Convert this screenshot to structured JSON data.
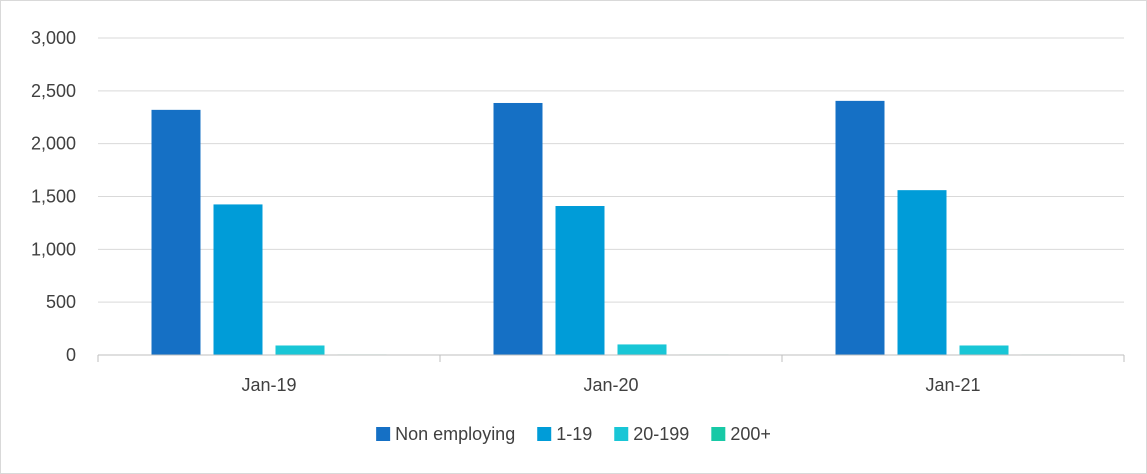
{
  "chart_data": {
    "type": "bar",
    "title": "",
    "xlabel": "",
    "ylabel": "",
    "categories": [
      "Jan-19",
      "Jan-20",
      "Jan-21"
    ],
    "ylim": [
      0,
      3000
    ],
    "yticks": [
      0,
      500,
      1000,
      1500,
      2000,
      2500,
      3000
    ],
    "ytick_labels": [
      "0",
      "500",
      "1,000",
      "1,500",
      "2,000",
      "2,500",
      "3,000"
    ],
    "grid": true,
    "legend_position": "bottom",
    "series": [
      {
        "name": "Non employing",
        "color": "#1570c5",
        "values": [
          2320,
          2385,
          2405
        ]
      },
      {
        "name": "1-19",
        "color": "#009cd8",
        "values": [
          1425,
          1410,
          1560
        ]
      },
      {
        "name": "20-199",
        "color": "#19c6d6",
        "values": [
          90,
          100,
          90
        ]
      },
      {
        "name": "200+",
        "color": "#18c9a6",
        "values": [
          5,
          5,
          5
        ]
      }
    ]
  }
}
